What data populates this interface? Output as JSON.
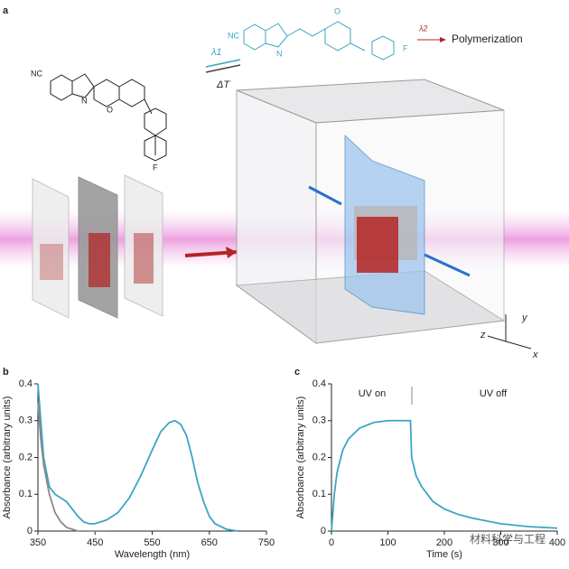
{
  "panel_labels": [
    "a",
    "b",
    "c"
  ],
  "schematic": {
    "closed_form": {
      "nc": "NC",
      "n": "N",
      "o": "O",
      "f": "F"
    },
    "open_form": {
      "nc": "NC",
      "n": "N",
      "o": "O",
      "f": "F"
    },
    "lambda1": "λ1",
    "delta_t": "ΔT",
    "lambda2": "λ2",
    "polymerization": "Polymerization",
    "axes": {
      "y": "y",
      "z": "z",
      "x": "x"
    }
  },
  "chart_data": [
    {
      "type": "line",
      "xlabel": "Wavelength (nm)",
      "ylabel": "Absorbance (arbitrary units)",
      "xlim": [
        350,
        750
      ],
      "xticks": [
        350,
        450,
        550,
        650,
        750
      ],
      "ylim": [
        0,
        0.4
      ],
      "yticks": [
        0,
        0.1,
        0.2,
        0.3,
        0.4
      ],
      "x": [
        350,
        355,
        360,
        370,
        380,
        390,
        400,
        410,
        420,
        430,
        440,
        450,
        470,
        490,
        510,
        530,
        550,
        565,
        580,
        590,
        600,
        610,
        620,
        630,
        640,
        650,
        660,
        680,
        700
      ],
      "series": [
        {
          "color": "#3aa6c4",
          "values": [
            0.4,
            0.3,
            0.2,
            0.12,
            0.1,
            0.09,
            0.08,
            0.06,
            0.04,
            0.025,
            0.02,
            0.02,
            0.03,
            0.05,
            0.09,
            0.15,
            0.22,
            0.27,
            0.295,
            0.3,
            0.29,
            0.26,
            0.2,
            0.13,
            0.08,
            0.04,
            0.02,
            0.005,
            0
          ]
        },
        {
          "color": "#8a8a8a",
          "values": [
            0.35,
            0.25,
            0.18,
            0.1,
            0.05,
            0.025,
            0.01,
            0.005,
            0,
            0,
            0,
            0,
            0,
            null,
            null,
            null,
            null,
            null,
            null,
            null,
            null,
            null,
            null,
            null,
            null,
            null,
            null,
            null,
            null
          ]
        }
      ]
    },
    {
      "type": "line",
      "xlabel": "Time (s)",
      "ylabel": "Absorbance (arbitrary units)",
      "xlim": [
        0,
        400
      ],
      "xticks": [
        0,
        100,
        200,
        300,
        400
      ],
      "ylim": [
        0,
        0.4
      ],
      "yticks": [
        0,
        0.1,
        0.2,
        0.3,
        0.4
      ],
      "annotations": [
        "UV on",
        "UV off"
      ],
      "x": [
        0,
        5,
        10,
        20,
        30,
        50,
        75,
        100,
        140,
        142,
        150,
        160,
        180,
        200,
        225,
        250,
        300,
        350,
        400
      ],
      "series": [
        {
          "color": "#3aa6c4",
          "values": [
            0,
            0.1,
            0.16,
            0.22,
            0.25,
            0.28,
            0.295,
            0.3,
            0.3,
            0.2,
            0.15,
            0.12,
            0.08,
            0.06,
            0.045,
            0.035,
            0.02,
            0.012,
            0.008
          ]
        }
      ]
    }
  ],
  "watermark": "材料科学与工程"
}
